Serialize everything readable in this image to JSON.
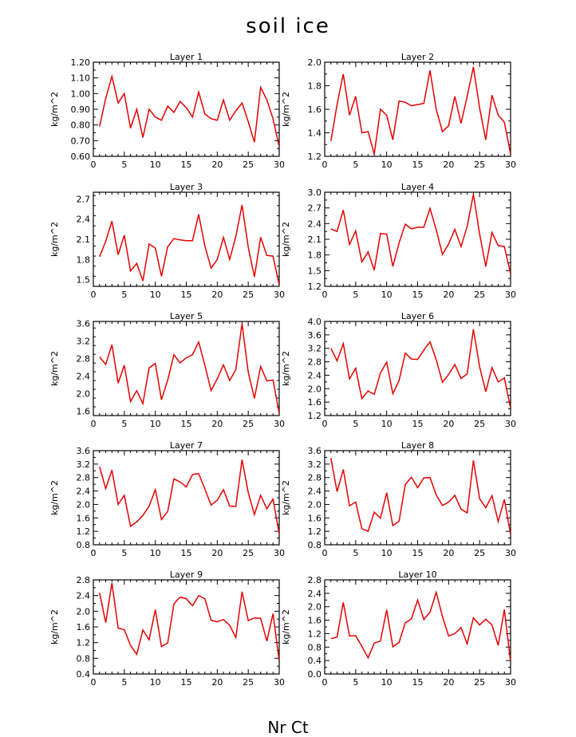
{
  "title": "soil ice",
  "footer": "Nr Ct",
  "colors": {
    "line": "#e60000",
    "axis": "#000000",
    "background": "#ffffff"
  },
  "chart_data": [
    {
      "type": "line",
      "title": "Layer 1",
      "ylabel": "kg/m^2",
      "xlim": [
        0,
        30
      ],
      "ylim": [
        0.6,
        1.2
      ],
      "xticks": [
        0,
        5,
        10,
        15,
        20,
        25,
        30
      ],
      "yticks": [
        0.6,
        0.7,
        0.8,
        0.9,
        1.0,
        1.1,
        1.2
      ],
      "ytick_labels": [
        "0.60",
        "0.70",
        "0.80",
        "0.90",
        "1.00",
        "1.10",
        "1.20"
      ],
      "x": [
        1,
        2,
        3,
        4,
        5,
        6,
        7,
        8,
        9,
        10,
        11,
        12,
        13,
        14,
        15,
        16,
        17,
        18,
        19,
        20,
        21,
        22,
        23,
        24,
        25,
        26,
        27,
        28,
        29,
        30
      ],
      "values": [
        0.79,
        0.97,
        1.11,
        0.94,
        1.0,
        0.78,
        0.9,
        0.72,
        0.9,
        0.85,
        0.83,
        0.92,
        0.88,
        0.95,
        0.91,
        0.85,
        1.01,
        0.87,
        0.84,
        0.83,
        0.96,
        0.83,
        0.89,
        0.94,
        0.82,
        0.69,
        1.04,
        0.96,
        0.84,
        0.66
      ]
    },
    {
      "type": "line",
      "title": "Layer 2",
      "ylabel": "kg/m^2",
      "xlim": [
        0,
        30
      ],
      "ylim": [
        1.2,
        2.0
      ],
      "xticks": [
        0,
        5,
        10,
        15,
        20,
        25,
        30
      ],
      "yticks": [
        1.2,
        1.4,
        1.6,
        1.8,
        2.0
      ],
      "ytick_labels": [
        "1.2",
        "1.4",
        "1.6",
        "1.8",
        "2.0"
      ],
      "x": [
        1,
        2,
        3,
        4,
        5,
        6,
        7,
        8,
        9,
        10,
        11,
        12,
        13,
        14,
        15,
        16,
        17,
        18,
        19,
        20,
        21,
        22,
        23,
        24,
        25,
        26,
        27,
        28,
        29,
        30
      ],
      "values": [
        1.33,
        1.64,
        1.9,
        1.55,
        1.71,
        1.4,
        1.41,
        1.22,
        1.6,
        1.55,
        1.34,
        1.67,
        1.66,
        1.63,
        1.64,
        1.65,
        1.93,
        1.6,
        1.41,
        1.46,
        1.71,
        1.48,
        1.71,
        1.96,
        1.61,
        1.34,
        1.72,
        1.55,
        1.49,
        1.22
      ]
    },
    {
      "type": "line",
      "title": "Layer 3",
      "ylabel": "kg/m^2",
      "xlim": [
        0,
        30
      ],
      "ylim": [
        1.4,
        2.8
      ],
      "xticks": [
        0,
        5,
        10,
        15,
        20,
        25,
        30
      ],
      "yticks": [
        1.5,
        1.8,
        2.1,
        2.4,
        2.7
      ],
      "ytick_labels": [
        "1.5",
        "1.8",
        "2.1",
        "2.4",
        "2.7"
      ],
      "x": [
        1,
        2,
        3,
        4,
        5,
        6,
        7,
        8,
        9,
        10,
        11,
        12,
        13,
        14,
        15,
        16,
        17,
        18,
        19,
        20,
        21,
        22,
        23,
        24,
        25,
        26,
        27,
        28,
        29,
        30
      ],
      "values": [
        1.84,
        2.07,
        2.37,
        1.87,
        2.16,
        1.63,
        1.74,
        1.48,
        2.03,
        1.97,
        1.55,
        1.99,
        2.11,
        2.09,
        2.08,
        2.08,
        2.47,
        2.0,
        1.67,
        1.8,
        2.13,
        1.8,
        2.14,
        2.61,
        1.98,
        1.54,
        2.13,
        1.86,
        1.85,
        1.42
      ]
    },
    {
      "type": "line",
      "title": "Layer 4",
      "ylabel": "kg/m^2",
      "xlim": [
        0,
        30
      ],
      "ylim": [
        1.2,
        3.0
      ],
      "xticks": [
        0,
        5,
        10,
        15,
        20,
        25,
        30
      ],
      "yticks": [
        1.2,
        1.5,
        1.8,
        2.1,
        2.4,
        2.7,
        3.0
      ],
      "ytick_labels": [
        "1.2",
        "1.5",
        "1.8",
        "2.1",
        "2.4",
        "2.7",
        "3.0"
      ],
      "x": [
        1,
        2,
        3,
        4,
        5,
        6,
        7,
        8,
        9,
        10,
        11,
        12,
        13,
        14,
        15,
        16,
        17,
        18,
        19,
        20,
        21,
        22,
        23,
        24,
        25,
        26,
        27,
        28,
        29,
        30
      ],
      "values": [
        2.3,
        2.25,
        2.66,
        2.0,
        2.26,
        1.67,
        1.86,
        1.51,
        2.21,
        2.2,
        1.58,
        2.03,
        2.39,
        2.3,
        2.33,
        2.33,
        2.69,
        2.28,
        1.81,
        2.01,
        2.29,
        1.96,
        2.35,
        2.96,
        2.2,
        1.58,
        2.23,
        1.98,
        1.96,
        1.44
      ]
    },
    {
      "type": "line",
      "title": "Layer 5",
      "ylabel": "kg/m^2",
      "xlim": [
        0,
        30
      ],
      "ylim": [
        1.5,
        3.65
      ],
      "xticks": [
        0,
        5,
        10,
        15,
        20,
        25,
        30
      ],
      "yticks": [
        1.6,
        2.0,
        2.4,
        2.8,
        3.2,
        3.6
      ],
      "ytick_labels": [
        "1.6",
        "2.0",
        "2.4",
        "2.8",
        "3.2",
        "3.6"
      ],
      "x": [
        1,
        2,
        3,
        4,
        5,
        6,
        7,
        8,
        9,
        10,
        11,
        12,
        13,
        14,
        15,
        16,
        17,
        18,
        19,
        20,
        21,
        22,
        23,
        24,
        25,
        26,
        27,
        28,
        29,
        30
      ],
      "values": [
        2.84,
        2.67,
        3.12,
        2.24,
        2.65,
        1.82,
        2.07,
        1.77,
        2.59,
        2.69,
        1.86,
        2.31,
        2.89,
        2.7,
        2.82,
        2.89,
        3.18,
        2.65,
        2.07,
        2.34,
        2.66,
        2.3,
        2.55,
        3.6,
        2.49,
        1.89,
        2.62,
        2.29,
        2.31,
        1.55
      ]
    },
    {
      "type": "line",
      "title": "Layer 6",
      "ylabel": "kg/m^2",
      "xlim": [
        0,
        30
      ],
      "ylim": [
        1.2,
        4.0
      ],
      "xticks": [
        0,
        5,
        10,
        15,
        20,
        25,
        30
      ],
      "yticks": [
        1.2,
        1.6,
        2.0,
        2.4,
        2.8,
        3.2,
        3.6,
        4.0
      ],
      "ytick_labels": [
        "1.2",
        "1.6",
        "2.0",
        "2.4",
        "2.8",
        "3.2",
        "3.6",
        "4.0"
      ],
      "x": [
        1,
        2,
        3,
        4,
        5,
        6,
        7,
        8,
        9,
        10,
        11,
        12,
        13,
        14,
        15,
        16,
        17,
        18,
        19,
        20,
        21,
        22,
        23,
        24,
        25,
        26,
        27,
        28,
        29,
        30
      ],
      "values": [
        3.2,
        2.83,
        3.34,
        2.29,
        2.61,
        1.7,
        1.93,
        1.83,
        2.47,
        2.79,
        1.85,
        2.24,
        3.06,
        2.88,
        2.87,
        3.15,
        3.39,
        2.86,
        2.19,
        2.42,
        2.72,
        2.3,
        2.44,
        3.77,
        2.65,
        1.91,
        2.63,
        2.2,
        2.32,
        1.42
      ]
    },
    {
      "type": "line",
      "title": "Layer 7",
      "ylabel": "kg/m^2",
      "xlim": [
        0,
        30
      ],
      "ylim": [
        0.8,
        3.6
      ],
      "xticks": [
        0,
        5,
        10,
        15,
        20,
        25,
        30
      ],
      "yticks": [
        0.8,
        1.2,
        1.6,
        2.0,
        2.4,
        2.8,
        3.2,
        3.6
      ],
      "ytick_labels": [
        "0.8",
        "1.2",
        "1.6",
        "2.0",
        "2.4",
        "2.8",
        "3.2",
        "3.6"
      ],
      "x": [
        1,
        2,
        3,
        4,
        5,
        6,
        7,
        8,
        9,
        10,
        11,
        12,
        13,
        14,
        15,
        16,
        17,
        18,
        19,
        20,
        21,
        22,
        23,
        24,
        25,
        26,
        27,
        28,
        29,
        30
      ],
      "values": [
        3.12,
        2.47,
        3.02,
        2.0,
        2.27,
        1.35,
        1.48,
        1.67,
        1.95,
        2.44,
        1.55,
        1.79,
        2.76,
        2.67,
        2.52,
        2.89,
        2.92,
        2.46,
        1.98,
        2.13,
        2.44,
        1.95,
        1.94,
        3.33,
        2.35,
        1.7,
        2.27,
        1.87,
        2.16,
        1.12
      ]
    },
    {
      "type": "line",
      "title": "Layer 8",
      "ylabel": "kg/m^2",
      "xlim": [
        0,
        30
      ],
      "ylim": [
        0.8,
        3.6
      ],
      "xticks": [
        0,
        5,
        10,
        15,
        20,
        25,
        30
      ],
      "yticks": [
        0.8,
        1.2,
        1.6,
        2.0,
        2.4,
        2.8,
        3.2,
        3.6
      ],
      "ytick_labels": [
        "0.8",
        "1.2",
        "1.6",
        "2.0",
        "2.4",
        "2.8",
        "3.2",
        "3.6"
      ],
      "x": [
        1,
        2,
        3,
        4,
        5,
        6,
        7,
        8,
        9,
        10,
        11,
        12,
        13,
        14,
        15,
        16,
        17,
        18,
        19,
        20,
        21,
        22,
        23,
        24,
        25,
        26,
        27,
        28,
        29,
        30
      ],
      "values": [
        3.38,
        2.38,
        3.04,
        1.96,
        2.07,
        1.28,
        1.2,
        1.77,
        1.59,
        2.35,
        1.37,
        1.5,
        2.59,
        2.81,
        2.5,
        2.79,
        2.8,
        2.28,
        1.97,
        2.07,
        2.27,
        1.86,
        1.75,
        3.31,
        2.17,
        1.9,
        2.26,
        1.49,
        2.15,
        1.1
      ]
    },
    {
      "type": "line",
      "title": "Layer 9",
      "ylabel": "kg/m^2",
      "xlim": [
        0,
        30
      ],
      "ylim": [
        0.4,
        2.8
      ],
      "xticks": [
        0,
        5,
        10,
        15,
        20,
        25,
        30
      ],
      "yticks": [
        0.4,
        0.8,
        1.2,
        1.6,
        2.0,
        2.4,
        2.8
      ],
      "ytick_labels": [
        "0.4",
        "0.8",
        "1.2",
        "1.6",
        "2.0",
        "2.4",
        "2.8"
      ],
      "x": [
        1,
        2,
        3,
        4,
        5,
        6,
        7,
        8,
        9,
        10,
        11,
        12,
        13,
        14,
        15,
        16,
        17,
        18,
        19,
        20,
        21,
        22,
        23,
        24,
        25,
        26,
        27,
        28,
        29,
        30
      ],
      "values": [
        2.47,
        1.71,
        2.72,
        1.57,
        1.53,
        1.13,
        0.9,
        1.52,
        1.27,
        2.04,
        1.1,
        1.19,
        2.19,
        2.36,
        2.32,
        2.14,
        2.4,
        2.32,
        1.77,
        1.73,
        1.79,
        1.64,
        1.33,
        2.5,
        1.76,
        1.83,
        1.82,
        1.24,
        1.94,
        0.73
      ]
    },
    {
      "type": "line",
      "title": "Layer 10",
      "ylabel": "kg/m^2",
      "xlim": [
        0,
        30
      ],
      "ylim": [
        0.0,
        2.8
      ],
      "xticks": [
        0,
        5,
        10,
        15,
        20,
        25,
        30
      ],
      "yticks": [
        0.0,
        0.4,
        0.8,
        1.2,
        1.6,
        2.0,
        2.4,
        2.8
      ],
      "ytick_labels": [
        "0.0",
        "0.4",
        "0.8",
        "1.2",
        "1.6",
        "2.0",
        "2.4",
        "2.8"
      ],
      "x": [
        1,
        2,
        3,
        4,
        5,
        6,
        7,
        8,
        9,
        10,
        11,
        12,
        13,
        14,
        15,
        16,
        17,
        18,
        19,
        20,
        21,
        22,
        23,
        24,
        25,
        26,
        27,
        28,
        29,
        30
      ],
      "values": [
        1.05,
        1.1,
        2.13,
        1.13,
        1.14,
        0.82,
        0.48,
        0.92,
        0.98,
        1.91,
        0.81,
        0.94,
        1.52,
        1.64,
        2.2,
        1.62,
        1.84,
        2.43,
        1.71,
        1.13,
        1.2,
        1.38,
        0.9,
        1.67,
        1.46,
        1.63,
        1.46,
        0.85,
        1.92,
        0.37
      ]
    }
  ]
}
